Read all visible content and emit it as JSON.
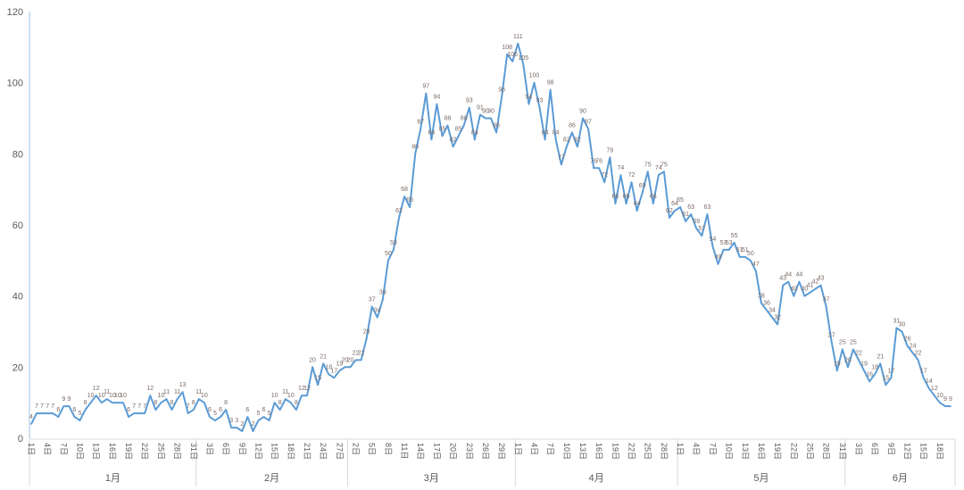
{
  "chart_data": {
    "type": "line",
    "title": "",
    "xlabel": "",
    "ylabel": "",
    "ylim": [
      0,
      120
    ],
    "y_ticks": [
      "0",
      "20",
      "40",
      "60",
      "80",
      "100",
      "120"
    ],
    "grid": false,
    "legend": "none",
    "data_labels": true,
    "day_suffix": "日",
    "line_color": "#5b9bd5",
    "months": [
      {
        "label": "1月",
        "values": [
          4,
          7,
          7,
          7,
          7,
          6,
          9,
          9,
          6,
          5,
          8,
          10,
          12,
          10,
          11,
          10,
          10,
          10,
          6,
          7,
          7,
          7,
          12,
          8,
          10,
          11,
          8,
          11,
          13,
          7,
          8
        ]
      },
      {
        "label": "2月",
        "values": [
          11,
          10,
          6,
          5,
          6,
          8,
          3,
          3,
          2,
          6,
          2,
          5,
          6,
          5,
          10,
          8,
          11,
          10,
          8,
          12,
          12,
          20,
          15,
          21,
          18,
          17,
          19,
          20
        ]
      },
      {
        "label": "3月",
        "values": [
          20,
          22,
          22,
          28,
          37,
          34,
          39,
          50,
          53,
          62,
          68,
          65,
          80,
          87,
          97,
          84,
          94,
          85,
          88,
          82,
          85,
          88,
          93,
          84,
          91,
          90,
          90,
          86,
          96,
          108,
          106
        ]
      },
      {
        "label": "4月",
        "values": [
          111,
          105,
          94,
          100,
          93,
          84,
          98,
          84,
          77,
          82,
          86,
          82,
          90,
          87,
          76,
          76,
          72,
          79,
          66,
          74,
          66,
          72,
          64,
          69,
          75,
          66,
          74,
          75,
          62,
          64
        ]
      },
      {
        "label": "5月",
        "values": [
          65,
          61,
          63,
          59,
          57,
          63,
          54,
          49,
          53,
          53,
          55,
          51,
          51,
          50,
          47,
          38,
          36,
          34,
          32,
          43,
          44,
          40,
          44,
          40,
          41,
          42,
          43,
          37,
          27,
          19,
          25
        ]
      },
      {
        "label": "6月",
        "values": [
          20,
          25,
          22,
          19,
          16,
          18,
          21,
          15,
          17,
          31,
          30,
          26,
          24,
          22,
          17,
          14,
          12,
          10,
          9,
          9
        ]
      }
    ]
  }
}
